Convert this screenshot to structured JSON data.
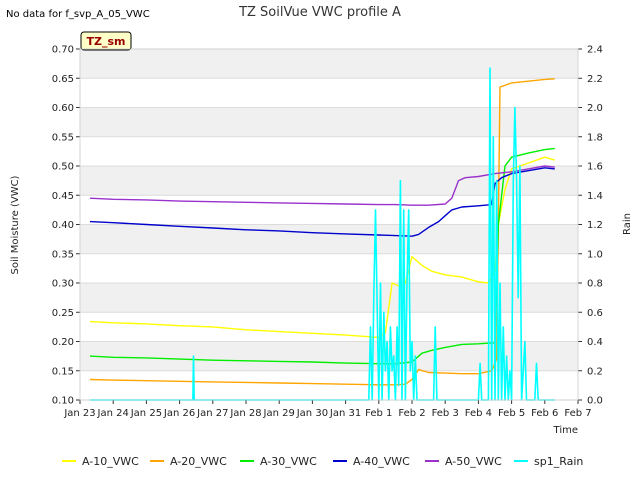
{
  "no_data_text": "No data for f_svp_A_05_VWC",
  "badge": "TZ_sm",
  "chart_data": {
    "type": "line",
    "title": "TZ SoilVue VWC profile A",
    "xlabel": "Time",
    "ylabel": "Soil Moisture (VWC)",
    "y2label": "Rain",
    "x_tick_labels": [
      "Jan 23",
      "Jan 24",
      "Jan 25",
      "Jan 26",
      "Jan 27",
      "Jan 28",
      "Jan 29",
      "Jan 30",
      "Jan 31",
      "Feb 1",
      "Feb 2",
      "Feb 3",
      "Feb 4",
      "Feb 5",
      "Feb 6",
      "Feb 7"
    ],
    "xlim": [
      0,
      15
    ],
    "ylim": [
      0.1,
      0.7
    ],
    "y_ticks": [
      0.1,
      0.15,
      0.2,
      0.25,
      0.3,
      0.35,
      0.4,
      0.45,
      0.5,
      0.55,
      0.6,
      0.65,
      0.7
    ],
    "y_tick_labels": [
      "0.10",
      "0.15",
      "0.20",
      "0.25",
      "0.30",
      "0.35",
      "0.40",
      "0.45",
      "0.50",
      "0.55",
      "0.60",
      "0.65",
      "0.70"
    ],
    "y2lim": [
      0.0,
      2.4
    ],
    "y2_ticks": [
      0.0,
      0.2,
      0.4,
      0.6,
      0.8,
      1.0,
      1.2,
      1.4,
      1.6,
      1.8,
      2.0,
      2.2,
      2.4
    ],
    "y2_tick_labels": [
      "0.0",
      "0.2",
      "0.4",
      "0.6",
      "0.8",
      "1.0",
      "1.2",
      "1.4",
      "1.6",
      "1.8",
      "2.0",
      "2.2",
      "2.4"
    ],
    "series": [
      {
        "name": "A-10_VWC",
        "color": "#ffff00",
        "axis": "left",
        "x": [
          0.3,
          1,
          2,
          3,
          4,
          5,
          6,
          7,
          8,
          9,
          9.2,
          9.4,
          9.6,
          9.8,
          10.0,
          10.3,
          10.6,
          11,
          11.5,
          12,
          12.3,
          12.5,
          12.6,
          12.8,
          13,
          13.5,
          14,
          14.3
        ],
        "y": [
          0.234,
          0.232,
          0.23,
          0.227,
          0.225,
          0.22,
          0.217,
          0.214,
          0.211,
          0.207,
          0.215,
          0.3,
          0.295,
          0.3,
          0.345,
          0.33,
          0.32,
          0.314,
          0.31,
          0.302,
          0.3,
          0.32,
          0.4,
          0.46,
          0.495,
          0.505,
          0.515,
          0.51
        ]
      },
      {
        "name": "A-20_VWC",
        "color": "#ffa500",
        "axis": "left",
        "x": [
          0.3,
          1,
          2,
          3,
          4,
          5,
          6,
          7,
          8,
          9,
          9.5,
          9.8,
          10.0,
          10.2,
          10.5,
          11,
          11.5,
          12,
          12.4,
          12.55,
          12.65,
          12.8,
          13,
          13.5,
          14,
          14.3
        ],
        "y": [
          0.135,
          0.134,
          0.133,
          0.132,
          0.131,
          0.13,
          0.129,
          0.128,
          0.127,
          0.126,
          0.126,
          0.127,
          0.135,
          0.152,
          0.147,
          0.146,
          0.145,
          0.145,
          0.15,
          0.17,
          0.635,
          0.638,
          0.642,
          0.645,
          0.648,
          0.649
        ]
      },
      {
        "name": "A-30_VWC",
        "color": "#00ee00",
        "axis": "left",
        "x": [
          0.3,
          1,
          2,
          3,
          4,
          5,
          6,
          7,
          8,
          9,
          9.5,
          10,
          10.3,
          10.6,
          11,
          11.5,
          12,
          12.5,
          12.6,
          12.8,
          13,
          13.5,
          14,
          14.3
        ],
        "y": [
          0.175,
          0.173,
          0.172,
          0.17,
          0.168,
          0.167,
          0.166,
          0.165,
          0.163,
          0.162,
          0.162,
          0.165,
          0.18,
          0.185,
          0.19,
          0.195,
          0.196,
          0.198,
          0.4,
          0.5,
          0.515,
          0.522,
          0.528,
          0.53
        ]
      },
      {
        "name": "A-40_VWC",
        "color": "#0000cd",
        "axis": "left",
        "x": [
          0.3,
          1,
          2,
          3,
          4,
          5,
          6,
          7,
          8,
          9,
          9.5,
          10,
          10.2,
          10.5,
          10.8,
          11,
          11.2,
          11.5,
          12,
          12.4,
          12.5,
          12.7,
          13,
          13.5,
          14,
          14.3
        ],
        "y": [
          0.405,
          0.403,
          0.4,
          0.397,
          0.394,
          0.391,
          0.389,
          0.386,
          0.384,
          0.382,
          0.381,
          0.38,
          0.383,
          0.395,
          0.405,
          0.415,
          0.425,
          0.43,
          0.432,
          0.434,
          0.47,
          0.48,
          0.487,
          0.492,
          0.497,
          0.495
        ]
      },
      {
        "name": "A-50_VWC",
        "color": "#9932cc",
        "axis": "left",
        "x": [
          0.3,
          1,
          2,
          3,
          4,
          5,
          6,
          7,
          8,
          9,
          9.5,
          10,
          10.5,
          11,
          11.2,
          11.4,
          11.6,
          12,
          12.5,
          13,
          13.5,
          14,
          14.3
        ],
        "y": [
          0.445,
          0.443,
          0.442,
          0.44,
          0.439,
          0.438,
          0.437,
          0.436,
          0.435,
          0.434,
          0.434,
          0.433,
          0.433,
          0.435,
          0.445,
          0.475,
          0.48,
          0.482,
          0.487,
          0.49,
          0.495,
          0.5,
          0.498
        ]
      },
      {
        "name": "sp1_Rain",
        "color": "#00ffff",
        "axis": "right",
        "x": [
          0.3,
          3.4,
          3.42,
          3.44,
          8.7,
          8.75,
          8.8,
          8.85,
          8.9,
          9.0,
          9.05,
          9.1,
          9.15,
          9.2,
          9.25,
          9.3,
          9.35,
          9.4,
          9.45,
          9.5,
          9.55,
          9.6,
          9.65,
          9.7,
          9.75,
          9.8,
          9.85,
          9.9,
          9.95,
          10.0,
          10.05,
          10.1,
          10.15,
          10.2,
          10.25,
          10.3,
          10.35,
          10.4,
          10.45,
          10.5,
          10.55,
          10.6,
          10.65,
          10.7,
          10.75,
          10.8,
          10.85,
          10.9,
          10.95,
          11.0,
          11.05,
          12.0,
          12.05,
          12.1,
          12.3,
          12.35,
          12.4,
          12.45,
          12.5,
          12.55,
          12.6,
          12.65,
          12.7,
          12.75,
          12.8,
          12.85,
          12.9,
          12.95,
          13.0,
          13.05,
          13.1,
          13.15,
          13.2,
          13.25,
          13.3,
          13.4,
          13.45,
          13.5,
          13.55,
          13.7,
          13.75,
          13.8,
          14.3
        ],
        "y": [
          0,
          0,
          0.3,
          0,
          0,
          0.5,
          0,
          0.7,
          1.3,
          0,
          0.8,
          0,
          0.6,
          0.2,
          0.4,
          0,
          0.5,
          0.2,
          0.3,
          0,
          0.5,
          0.1,
          1.5,
          0,
          1.3,
          0,
          0.8,
          1.3,
          0.2,
          0.4,
          0,
          0.3,
          0,
          0,
          0,
          0,
          0,
          0,
          0,
          0,
          0,
          0,
          0,
          0.5,
          0,
          0,
          0,
          0,
          0,
          0,
          0,
          0,
          0.25,
          0,
          0,
          2.27,
          0,
          1.8,
          0,
          1.5,
          0,
          0.8,
          0,
          0.5,
          0,
          0.3,
          0,
          0.2,
          0,
          1.5,
          2.0,
          1.5,
          0.7,
          1.6,
          0,
          0.4,
          0,
          0,
          0,
          0,
          0.25,
          0,
          0
        ]
      }
    ]
  }
}
